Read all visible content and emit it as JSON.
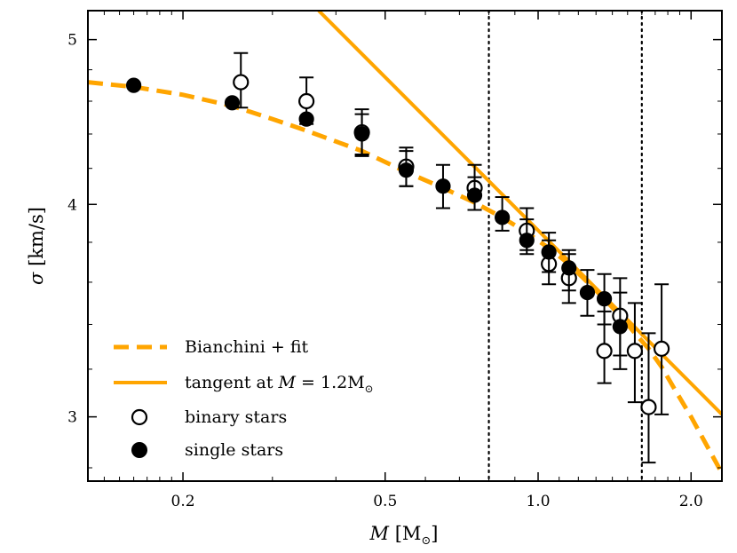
{
  "chart_data": {
    "type": "scatter",
    "xscale": "log",
    "yscale": "log",
    "xlim": [
      0.13,
      2.3
    ],
    "ylim": [
      2.75,
      5.2
    ],
    "xticks": [
      0.2,
      0.5,
      1.0,
      2.0
    ],
    "xtick_labels": [
      "0.2",
      "0.5",
      "1.0",
      "2.0"
    ],
    "yticks": [
      3,
      4,
      5
    ],
    "ytick_labels": [
      "3",
      "4",
      "5"
    ],
    "xlabel_var": "M",
    "xlabel_unit": "[M",
    "xlabel_sub": "⊙",
    "xlabel_close": "]",
    "ylabel_var": "σ",
    "ylabel_unit": "[km/s]",
    "vlines": [
      0.8,
      1.6
    ],
    "colors": {
      "fit": "#ffa500",
      "points": "#000000"
    },
    "legend": {
      "placement": "lower-left",
      "entries": [
        {
          "text": "Bianchini + fit",
          "style": "dashed"
        },
        {
          "text": "tangent at",
          "math_var": "M",
          "math_rest": " = 1.2M",
          "math_sub": "⊙",
          "style": "solid"
        },
        {
          "text": "binary stars",
          "style": "open-circle"
        },
        {
          "text": "single stars",
          "style": "filled-circle"
        }
      ]
    },
    "series": [
      {
        "name": "Bianchini + fit",
        "kind": "dashed-line",
        "x": [
          0.13,
          0.16,
          0.2,
          0.25,
          0.3,
          0.35,
          0.45,
          0.55,
          0.65,
          0.75,
          0.85,
          0.95,
          1.05,
          1.15,
          1.25,
          1.35,
          1.45,
          1.55,
          1.65,
          1.75,
          1.85,
          2.0,
          2.3
        ],
        "y": [
          4.72,
          4.69,
          4.64,
          4.57,
          4.49,
          4.42,
          4.3,
          4.18,
          4.09,
          4.01,
          3.93,
          3.85,
          3.77,
          3.69,
          3.6,
          3.52,
          3.44,
          3.36,
          3.29,
          3.21,
          3.12,
          3.0,
          2.78
        ]
      },
      {
        "name": "tangent at M = 1.2M⊙",
        "kind": "solid-line",
        "x": [
          0.37,
          2.3
        ],
        "y": [
          5.2,
          3.01
        ]
      },
      {
        "name": "binary stars",
        "kind": "open-circle",
        "x": [
          0.26,
          0.35,
          0.45,
          0.55,
          0.75,
          0.95,
          1.05,
          1.15,
          1.35,
          1.45,
          1.55,
          1.65,
          1.75
        ],
        "y": [
          4.72,
          4.6,
          4.41,
          4.21,
          4.09,
          3.86,
          3.69,
          3.62,
          3.28,
          3.44,
          3.28,
          3.04,
          3.29
        ],
        "yerr_low": [
          4.56,
          4.46,
          4.27,
          4.1,
          3.97,
          3.76,
          3.59,
          3.5,
          3.14,
          3.2,
          3.06,
          2.82,
          3.01
        ],
        "yerr_high": [
          4.91,
          4.75,
          4.55,
          4.32,
          4.22,
          3.98,
          3.81,
          3.74,
          3.46,
          3.62,
          3.5,
          3.36,
          3.59
        ]
      },
      {
        "name": "single stars",
        "kind": "filled-circle",
        "x": [
          0.16,
          0.25,
          0.35,
          0.45,
          0.55,
          0.65,
          0.75,
          0.85,
          0.95,
          1.05,
          1.15,
          1.25,
          1.35,
          1.45
        ],
        "y": [
          4.7,
          4.59,
          4.49,
          4.4,
          4.19,
          4.1,
          4.05,
          3.93,
          3.81,
          3.75,
          3.67,
          3.55,
          3.52,
          3.39
        ],
        "yerr_low": [
          4.7,
          4.59,
          4.49,
          4.28,
          4.1,
          3.98,
          3.97,
          3.86,
          3.74,
          3.65,
          3.56,
          3.44,
          3.4,
          3.26
        ],
        "yerr_high": [
          4.7,
          4.59,
          4.49,
          4.52,
          4.3,
          4.22,
          4.15,
          4.04,
          3.92,
          3.85,
          3.76,
          3.66,
          3.64,
          3.55
        ]
      }
    ]
  }
}
